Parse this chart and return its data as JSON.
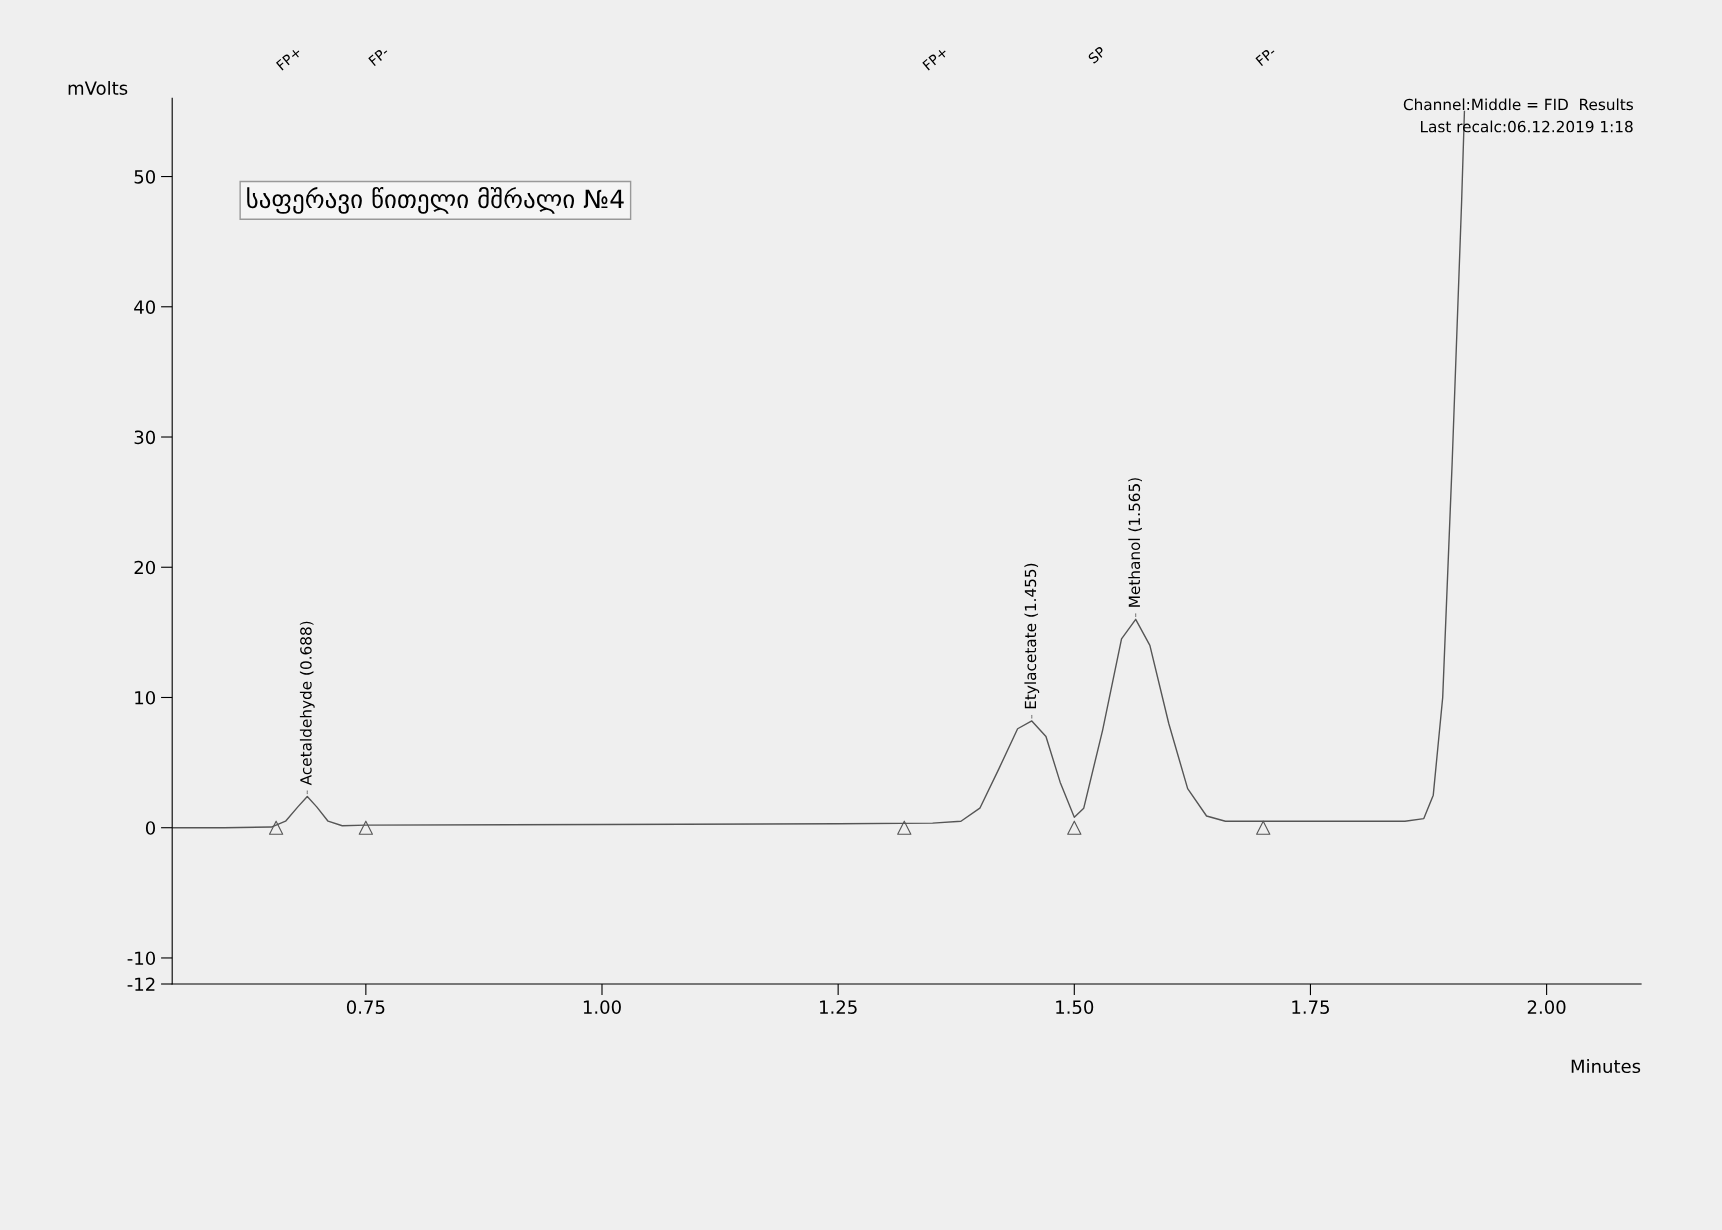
{
  "chart_data": {
    "type": "line",
    "xlabel": "Minutes",
    "ylabel": "mVolts",
    "xlim": [
      0.545,
      2.1
    ],
    "xticks": [
      0.75,
      {
        "value": 1,
        "label": "1.00"
      },
      1.25,
      {
        "value": 1.5,
        "label": "1.50"
      },
      1.75,
      {
        "value": 2,
        "label": "2.00"
      }
    ],
    "ylim": [
      -12,
      56
    ],
    "yticks": [
      -12,
      -10,
      0,
      10,
      20,
      30,
      40,
      50
    ],
    "grid": false,
    "legend": false,
    "series": [
      {
        "color": "#555555",
        "marker": "none",
        "x": [
          0.545,
          0.6,
          0.65,
          0.665,
          0.678,
          0.688,
          0.698,
          0.71,
          0.725,
          0.75,
          1.0,
          1.25,
          1.35,
          1.38,
          1.4,
          1.42,
          1.44,
          1.455,
          1.47,
          1.485,
          1.5,
          1.51,
          1.53,
          1.55,
          1.565,
          1.58,
          1.6,
          1.62,
          1.64,
          1.66,
          1.75,
          1.85,
          1.87,
          1.88,
          1.89,
          1.9,
          1.91,
          1.913
        ],
        "values": [
          0,
          0,
          0.05,
          0.5,
          1.6,
          2.4,
          1.6,
          0.5,
          0.15,
          0.2,
          0.25,
          0.3,
          0.35,
          0.5,
          1.5,
          4.5,
          7.6,
          8.2,
          7.0,
          3.5,
          0.8,
          1.5,
          7.5,
          14.5,
          16.0,
          14.0,
          8.0,
          3.0,
          0.9,
          0.5,
          0.5,
          0.5,
          0.7,
          2.5,
          10,
          28,
          48,
          55
        ]
      },
      {
        "type": "scatter",
        "color": "#555555",
        "marker": "triangle",
        "x": [
          0.655,
          0.75,
          1.32,
          1.5,
          1.7
        ],
        "values": [
          0,
          0,
          0,
          0,
          0
        ]
      }
    ],
    "annotations": [
      "საფერავი წითელი მშრალი №4",
      "Channel:Middle = FID  Results",
      "Last recalc:06.12.2019 1:18",
      "FP+",
      "FP-",
      "FP+",
      "SP",
      "FP-",
      {
        "text": "Acetaldehyde (0.688)",
        "x": 0.688,
        "y": 2.4
      },
      {
        "text": "Etylacetate (1.455)",
        "x": 1.455,
        "y": 8.2
      },
      {
        "text": "Methanol (1.565)",
        "x": 1.565,
        "y": 16.0
      }
    ]
  }
}
